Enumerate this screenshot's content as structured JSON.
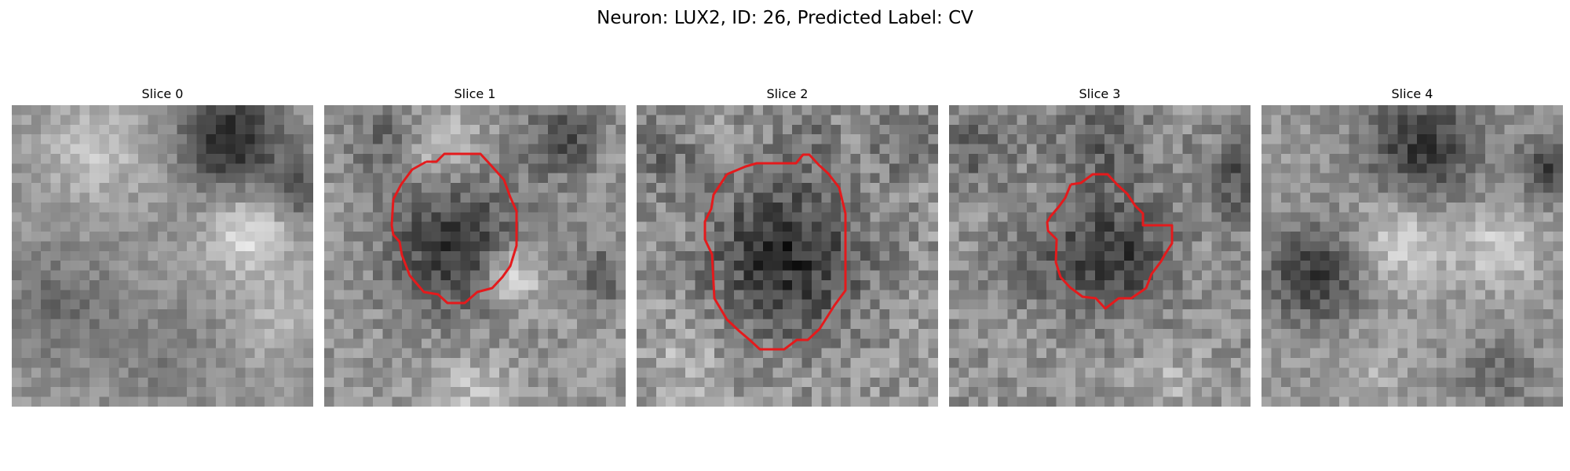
{
  "figure": {
    "title": "Neuron: LUX2, ID: 26, Predicted Label: CV"
  },
  "slices": [
    {
      "title": "Slice 0",
      "has_contour": false
    },
    {
      "title": "Slice 1",
      "has_contour": true
    },
    {
      "title": "Slice 2",
      "has_contour": true
    },
    {
      "title": "Slice 3",
      "has_contour": true
    },
    {
      "title": "Slice 4",
      "has_contour": false
    }
  ],
  "colors": {
    "contour": "#e41a1c",
    "background": "#ffffff"
  },
  "image": {
    "colormap": "gray",
    "grid_size": 31
  }
}
